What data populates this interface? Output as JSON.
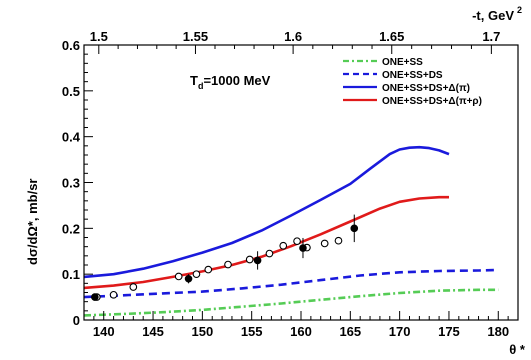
{
  "chart_data": {
    "type": "line",
    "annotation_main": "T",
    "annotation_sub": "d",
    "annotation_rest": "=1000 MeV",
    "x_axis": {
      "label": "θ *",
      "range": [
        138,
        182
      ],
      "ticks": [
        140,
        145,
        150,
        155,
        160,
        165,
        170,
        175,
        180
      ]
    },
    "y_axis": {
      "label": "dσ/dΩ*, mb/sr",
      "range": [
        0,
        0.6
      ],
      "ticks": [
        0,
        0.1,
        0.2,
        0.3,
        0.4,
        0.5,
        0.6
      ],
      "tick_labels": [
        "0",
        "0.1",
        "0.2",
        "0.3",
        "0.4",
        "0.5",
        "0.6"
      ]
    },
    "top_axis": {
      "label_main": "-t, GeV",
      "label_sup": "2",
      "ticks": [
        {
          "label": "1.5",
          "theta": 139.5
        },
        {
          "label": "1.55",
          "theta": 149.3
        },
        {
          "label": "1.6",
          "theta": 159.2
        },
        {
          "label": "1.65",
          "theta": 169.2
        },
        {
          "label": "1.7",
          "theta": 179.3
        }
      ]
    },
    "legend": {
      "placement": "top-right",
      "entries": [
        {
          "label": "ONE+SS",
          "color": "#55cc55",
          "dash": "dashdot"
        },
        {
          "label": "ONE+SS+DS",
          "color": "#1a1adc",
          "dash": "dashed"
        },
        {
          "label": "ONE+SS+DS+Δ(π)",
          "color": "#1a1adc",
          "dash": "solid"
        },
        {
          "label": "ONE+SS+DS+Δ(π+ρ)",
          "color": "#e01a1a",
          "dash": "solid"
        }
      ]
    },
    "series": [
      {
        "name": "ONE+SS",
        "color": "#55cc55",
        "dash": "dashdot",
        "x": [
          138,
          142,
          146,
          150,
          154,
          158,
          162,
          166,
          170,
          174,
          178,
          180
        ],
        "y": [
          0.01,
          0.013,
          0.017,
          0.022,
          0.029,
          0.036,
          0.044,
          0.052,
          0.059,
          0.064,
          0.066,
          0.066
        ]
      },
      {
        "name": "ONE+SS+DS",
        "color": "#1a1adc",
        "dash": "dashed",
        "x": [
          138,
          142,
          146,
          150,
          154,
          158,
          162,
          166,
          170,
          174,
          178,
          180
        ],
        "y": [
          0.05,
          0.054,
          0.058,
          0.062,
          0.069,
          0.077,
          0.087,
          0.097,
          0.104,
          0.107,
          0.108,
          0.109
        ]
      },
      {
        "name": "ONE+SS+DS+Δ(π)",
        "color": "#1a1adc",
        "dash": "solid",
        "x": [
          138,
          141,
          144,
          147,
          150,
          153,
          156,
          159,
          162,
          165,
          167,
          169,
          170,
          171,
          172,
          173,
          174,
          175
        ],
        "y": [
          0.094,
          0.1,
          0.112,
          0.128,
          0.147,
          0.168,
          0.195,
          0.228,
          0.262,
          0.297,
          0.33,
          0.362,
          0.372,
          0.376,
          0.377,
          0.375,
          0.37,
          0.362
        ]
      },
      {
        "name": "ONE+SS+DS+Δ(π+ρ)",
        "color": "#e01a1a",
        "dash": "solid",
        "x": [
          138,
          141,
          144,
          147,
          150,
          153,
          156,
          159,
          162,
          165,
          168,
          170,
          172,
          174,
          175
        ],
        "y": [
          0.07,
          0.075,
          0.083,
          0.094,
          0.106,
          0.12,
          0.138,
          0.161,
          0.187,
          0.215,
          0.243,
          0.258,
          0.265,
          0.268,
          0.268
        ]
      }
    ],
    "data_open": {
      "marker": "open-circle",
      "x": [
        139.3,
        141,
        143,
        147.6,
        149.4,
        150.6,
        152.6,
        154.8,
        156.8,
        158.2,
        159.6,
        160.6,
        162.4,
        163.8
      ],
      "y": [
        0.05,
        0.055,
        0.072,
        0.095,
        0.1,
        0.11,
        0.121,
        0.132,
        0.145,
        0.162,
        0.172,
        0.158,
        0.167,
        0.173
      ]
    },
    "data_filled": {
      "marker": "filled-circle",
      "x": [
        139.1,
        148.6,
        155.6,
        160.2,
        165.4
      ],
      "y": [
        0.05,
        0.09,
        0.13,
        0.157,
        0.2
      ],
      "err": [
        0.008,
        0.01,
        0.02,
        0.022,
        0.03
      ]
    }
  }
}
